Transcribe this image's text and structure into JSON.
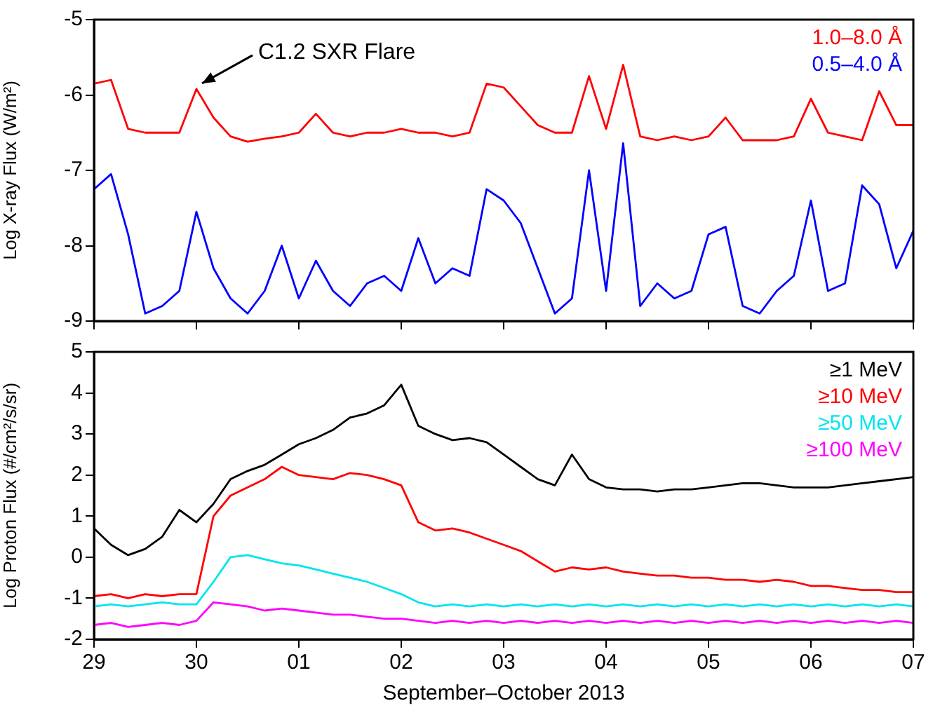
{
  "chart_data": [
    {
      "type": "line",
      "ylabel": "Log X-ray Flux (W/m²)",
      "legend": "top right",
      "tick_labels": "y",
      "xlim": [
        "2013-09-29",
        "2013-10-07"
      ],
      "xticks": [
        {
          "value": "2013-09-29",
          "label": null
        },
        {
          "value": "2013-09-30",
          "label": null
        },
        {
          "value": "2013-10-01",
          "label": null
        },
        {
          "value": "2013-10-02",
          "label": null
        },
        {
          "value": "2013-10-03",
          "label": null
        },
        {
          "value": "2013-10-04",
          "label": null
        },
        {
          "value": "2013-10-05",
          "label": null
        },
        {
          "value": "2013-10-06",
          "label": null
        },
        {
          "value": "2013-10-07",
          "label": null
        }
      ],
      "ylim": [
        -9,
        -5
      ],
      "yticks": [
        -9,
        -8,
        -7,
        -6,
        -5
      ],
      "annotations": [
        {
          "text": "C1.2 SXR Flare",
          "x": "2013-09-30T00:00",
          "y": -5.92
        }
      ],
      "x": [
        "2013-09-29T00:00",
        "2013-09-29T04:00",
        "2013-09-29T08:00",
        "2013-09-29T12:00",
        "2013-09-29T16:00",
        "2013-09-29T20:00",
        "2013-09-30T00:00",
        "2013-09-30T04:00",
        "2013-09-30T08:00",
        "2013-09-30T12:00",
        "2013-09-30T16:00",
        "2013-09-30T20:00",
        "2013-10-01T00:00",
        "2013-10-01T04:00",
        "2013-10-01T08:00",
        "2013-10-01T12:00",
        "2013-10-01T16:00",
        "2013-10-01T20:00",
        "2013-10-02T00:00",
        "2013-10-02T04:00",
        "2013-10-02T08:00",
        "2013-10-02T12:00",
        "2013-10-02T16:00",
        "2013-10-02T20:00",
        "2013-10-03T00:00",
        "2013-10-03T04:00",
        "2013-10-03T08:00",
        "2013-10-03T12:00",
        "2013-10-03T16:00",
        "2013-10-03T20:00",
        "2013-10-04T00:00",
        "2013-10-04T04:00",
        "2013-10-04T08:00",
        "2013-10-04T12:00",
        "2013-10-04T16:00",
        "2013-10-04T20:00",
        "2013-10-05T00:00",
        "2013-10-05T04:00",
        "2013-10-05T08:00",
        "2013-10-05T12:00",
        "2013-10-05T16:00",
        "2013-10-05T20:00",
        "2013-10-06T00:00",
        "2013-10-06T04:00",
        "2013-10-06T08:00",
        "2013-10-06T12:00",
        "2013-10-06T16:00",
        "2013-10-06T20:00",
        "2013-10-07T00:00"
      ],
      "series": [
        {
          "name": "1.0–8.0 Å",
          "color": "#ff0000",
          "values": [
            -5.85,
            -5.8,
            -6.45,
            -6.5,
            -6.5,
            -6.5,
            -5.92,
            -6.3,
            -6.55,
            -6.62,
            -6.58,
            -6.55,
            -6.5,
            -6.25,
            -6.5,
            -6.55,
            -6.5,
            -6.5,
            -6.45,
            -6.5,
            -6.5,
            -6.55,
            -6.5,
            -5.85,
            -5.9,
            -6.15,
            -6.4,
            -6.5,
            -6.5,
            -5.75,
            -6.45,
            -5.6,
            -6.55,
            -6.6,
            -6.55,
            -6.6,
            -6.55,
            -6.3,
            -6.6,
            -6.6,
            -6.6,
            -6.55,
            -6.05,
            -6.5,
            -6.55,
            -6.6,
            -5.95,
            -6.4,
            -6.4
          ]
        },
        {
          "name": "0.5–4.0 Å",
          "color": "#0000ff",
          "values": [
            -7.25,
            -7.05,
            -7.85,
            -8.9,
            -8.8,
            -8.6,
            -7.55,
            -8.3,
            -8.7,
            -8.9,
            -8.6,
            -8.0,
            -8.7,
            -8.2,
            -8.6,
            -8.8,
            -8.5,
            -8.4,
            -8.6,
            -7.9,
            -8.5,
            -8.3,
            -8.4,
            -7.25,
            -7.4,
            -7.7,
            -8.3,
            -8.9,
            -8.7,
            -7.0,
            -8.6,
            -6.64,
            -8.8,
            -8.5,
            -8.7,
            -8.6,
            -7.85,
            -7.75,
            -8.8,
            -8.9,
            -8.6,
            -8.4,
            -7.4,
            -8.6,
            -8.5,
            -7.2,
            -7.45,
            -8.3,
            -7.8
          ]
        }
      ]
    },
    {
      "type": "line",
      "ylabel": "Log Proton Flux (#/cm²/s/sr)",
      "xlabel": "September–October 2013",
      "legend": "top right",
      "xlim": [
        "2013-09-29",
        "2013-10-07"
      ],
      "xticks": [
        {
          "value": "2013-09-29",
          "label": "29"
        },
        {
          "value": "2013-09-30",
          "label": "30"
        },
        {
          "value": "2013-10-01",
          "label": "01"
        },
        {
          "value": "2013-10-02",
          "label": "02"
        },
        {
          "value": "2013-10-03",
          "label": "03"
        },
        {
          "value": "2013-10-04",
          "label": "04"
        },
        {
          "value": "2013-10-05",
          "label": "05"
        },
        {
          "value": "2013-10-06",
          "label": "06"
        },
        {
          "value": "2013-10-07",
          "label": "07"
        }
      ],
      "ylim": [
        -2,
        5
      ],
      "yticks": [
        -2,
        -1,
        0,
        1,
        2,
        3,
        4,
        5
      ],
      "x": [
        "2013-09-29T00:00",
        "2013-09-29T04:00",
        "2013-09-29T08:00",
        "2013-09-29T12:00",
        "2013-09-29T16:00",
        "2013-09-29T20:00",
        "2013-09-30T00:00",
        "2013-09-30T04:00",
        "2013-09-30T08:00",
        "2013-09-30T12:00",
        "2013-09-30T16:00",
        "2013-09-30T20:00",
        "2013-10-01T00:00",
        "2013-10-01T04:00",
        "2013-10-01T08:00",
        "2013-10-01T12:00",
        "2013-10-01T16:00",
        "2013-10-01T20:00",
        "2013-10-02T00:00",
        "2013-10-02T04:00",
        "2013-10-02T08:00",
        "2013-10-02T12:00",
        "2013-10-02T16:00",
        "2013-10-02T20:00",
        "2013-10-03T00:00",
        "2013-10-03T04:00",
        "2013-10-03T08:00",
        "2013-10-03T12:00",
        "2013-10-03T16:00",
        "2013-10-03T20:00",
        "2013-10-04T00:00",
        "2013-10-04T04:00",
        "2013-10-04T08:00",
        "2013-10-04T12:00",
        "2013-10-04T16:00",
        "2013-10-04T20:00",
        "2013-10-05T00:00",
        "2013-10-05T04:00",
        "2013-10-05T08:00",
        "2013-10-05T12:00",
        "2013-10-05T16:00",
        "2013-10-05T20:00",
        "2013-10-06T00:00",
        "2013-10-06T04:00",
        "2013-10-06T08:00",
        "2013-10-06T12:00",
        "2013-10-06T16:00",
        "2013-10-06T20:00",
        "2013-10-07T00:00"
      ],
      "series": [
        {
          "name": "≥1 MeV",
          "color": "#000000",
          "values": [
            0.7,
            0.3,
            0.05,
            0.2,
            0.5,
            1.15,
            0.85,
            1.3,
            1.9,
            2.1,
            2.25,
            2.5,
            2.75,
            2.9,
            3.1,
            3.4,
            3.5,
            3.7,
            4.2,
            3.2,
            3.0,
            2.85,
            2.9,
            2.8,
            2.5,
            2.2,
            1.9,
            1.75,
            2.5,
            1.9,
            1.7,
            1.65,
            1.65,
            1.6,
            1.65,
            1.65,
            1.7,
            1.75,
            1.8,
            1.8,
            1.75,
            1.7,
            1.7,
            1.7,
            1.75,
            1.8,
            1.85,
            1.9,
            1.95
          ]
        },
        {
          "name": "≥10 MeV",
          "color": "#ff0000",
          "values": [
            -0.95,
            -0.9,
            -1.0,
            -0.9,
            -0.95,
            -0.9,
            -0.9,
            1.0,
            1.5,
            1.7,
            1.9,
            2.2,
            2.0,
            1.95,
            1.9,
            2.05,
            2.0,
            1.9,
            1.75,
            0.85,
            0.65,
            0.7,
            0.6,
            0.45,
            0.3,
            0.15,
            -0.1,
            -0.35,
            -0.25,
            -0.3,
            -0.25,
            -0.35,
            -0.4,
            -0.45,
            -0.45,
            -0.5,
            -0.5,
            -0.55,
            -0.55,
            -0.6,
            -0.55,
            -0.6,
            -0.7,
            -0.7,
            -0.75,
            -0.8,
            -0.8,
            -0.85,
            -0.85
          ]
        },
        {
          "name": "≥50 MeV",
          "color": "#00e5ee",
          "values": [
            -1.2,
            -1.15,
            -1.2,
            -1.15,
            -1.1,
            -1.15,
            -1.15,
            -0.6,
            0.0,
            0.05,
            -0.05,
            -0.15,
            -0.2,
            -0.3,
            -0.4,
            -0.5,
            -0.6,
            -0.75,
            -0.9,
            -1.1,
            -1.2,
            -1.15,
            -1.2,
            -1.15,
            -1.2,
            -1.15,
            -1.2,
            -1.15,
            -1.2,
            -1.15,
            -1.2,
            -1.15,
            -1.2,
            -1.15,
            -1.2,
            -1.15,
            -1.2,
            -1.15,
            -1.2,
            -1.15,
            -1.2,
            -1.15,
            -1.2,
            -1.15,
            -1.2,
            -1.15,
            -1.2,
            -1.15,
            -1.2
          ]
        },
        {
          "name": "≥100 MeV",
          "color": "#ff00ff",
          "values": [
            -1.65,
            -1.6,
            -1.7,
            -1.65,
            -1.6,
            -1.65,
            -1.55,
            -1.1,
            -1.15,
            -1.2,
            -1.3,
            -1.25,
            -1.3,
            -1.35,
            -1.4,
            -1.4,
            -1.45,
            -1.5,
            -1.5,
            -1.55,
            -1.6,
            -1.55,
            -1.6,
            -1.55,
            -1.6,
            -1.55,
            -1.6,
            -1.55,
            -1.6,
            -1.55,
            -1.6,
            -1.55,
            -1.6,
            -1.55,
            -1.6,
            -1.55,
            -1.6,
            -1.55,
            -1.6,
            -1.55,
            -1.6,
            -1.55,
            -1.6,
            -1.55,
            -1.6,
            -1.55,
            -1.6,
            -1.55,
            -1.6
          ]
        }
      ]
    }
  ]
}
